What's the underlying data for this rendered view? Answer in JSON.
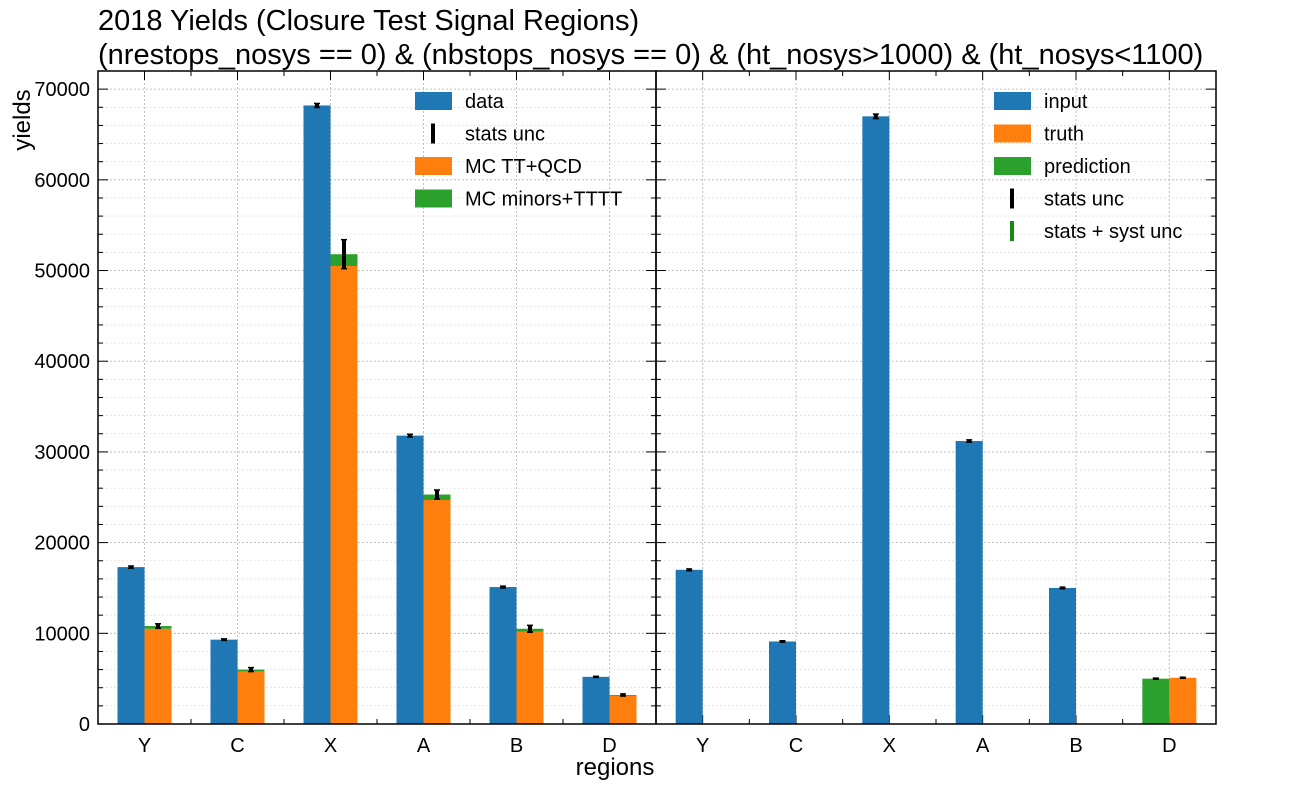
{
  "chart_data": [
    {
      "type": "bar",
      "panel": "left",
      "title_line1": "2018 Yields (Closure Test Signal Regions)",
      "title_line2": "(nrestops_nosys == 0) & (nbstops_nosys == 0) & (ht_nosys>1000) & (ht_nosys<1100)",
      "xlabel": "regions",
      "ylabel": "yields",
      "ylim": [
        0,
        72000
      ],
      "yticks": [
        0,
        10000,
        20000,
        30000,
        40000,
        50000,
        60000,
        70000
      ],
      "grid": true,
      "legend_position": "top-right",
      "categories": [
        "Y",
        "C",
        "X",
        "A",
        "B",
        "D"
      ],
      "series": [
        {
          "name": "data",
          "color": "#1f77b4",
          "values": [
            17300,
            9300,
            68200,
            31800,
            15100,
            5200
          ],
          "err": [
            120,
            90,
            220,
            150,
            100,
            60
          ]
        },
        {
          "name": "MC TT+QCD",
          "color": "#ff7f0e",
          "values": [
            10500,
            5800,
            50500,
            24700,
            10200,
            3100
          ]
        },
        {
          "name": "MC minors+TTTT",
          "color": "#2ca02c",
          "values": [
            300,
            200,
            1300,
            600,
            300,
            100
          ],
          "stack_err": [
            250,
            220,
            1600,
            500,
            380,
            120
          ]
        }
      ],
      "legend": [
        {
          "label": "data",
          "kind": "patch",
          "color": "#1f77b4"
        },
        {
          "label": "stats unc",
          "kind": "errbar",
          "color": "#000000"
        },
        {
          "label": "MC TT+QCD",
          "kind": "patch",
          "color": "#ff7f0e"
        },
        {
          "label": "MC minors+TTTT",
          "kind": "patch",
          "color": "#2ca02c"
        }
      ]
    },
    {
      "type": "bar",
      "panel": "right",
      "ylim": [
        0,
        72000
      ],
      "grid": true,
      "legend_position": "top-right",
      "categories": [
        "Y",
        "C",
        "X",
        "A",
        "B",
        "D"
      ],
      "series": [
        {
          "name": "input",
          "color": "#1f77b4",
          "values": [
            17000,
            9100,
            67000,
            31200,
            15000,
            null
          ],
          "err": [
            100,
            80,
            250,
            130,
            90,
            null
          ]
        },
        {
          "name": "prediction",
          "color": "#2ca02c",
          "values": [
            null,
            null,
            null,
            null,
            null,
            5000
          ],
          "err": [
            null,
            null,
            null,
            null,
            null,
            60
          ]
        },
        {
          "name": "truth",
          "color": "#ff7f0e",
          "values": [
            null,
            null,
            null,
            null,
            null,
            5100
          ],
          "err": [
            null,
            null,
            null,
            null,
            null,
            60
          ]
        }
      ],
      "legend": [
        {
          "label": "input",
          "kind": "patch",
          "color": "#1f77b4"
        },
        {
          "label": "truth",
          "kind": "patch",
          "color": "#ff7f0e"
        },
        {
          "label": "prediction",
          "kind": "patch",
          "color": "#2ca02c"
        },
        {
          "label": "stats unc",
          "kind": "errbar",
          "color": "#000000"
        },
        {
          "label": "stats + syst unc",
          "kind": "errbar",
          "color": "#138a13"
        }
      ]
    }
  ]
}
